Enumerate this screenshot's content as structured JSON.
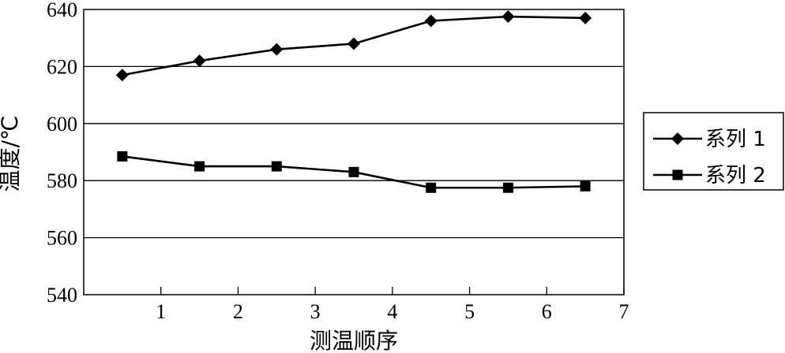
{
  "chart_data": {
    "type": "line",
    "xlabel": "测温顺序",
    "ylabel": "温度/℃",
    "xlim": [
      0,
      7
    ],
    "ylim": [
      540,
      640
    ],
    "xticks": [
      1,
      2,
      3,
      4,
      5,
      6,
      7
    ],
    "yticks": [
      540,
      560,
      580,
      600,
      620,
      640
    ],
    "grid": "horizontal",
    "legend_position": "right",
    "series": [
      {
        "name": "系列 1",
        "marker": "diamond",
        "color": "#000000",
        "x": [
          0.5,
          1.5,
          2.5,
          3.5,
          4.5,
          5.5,
          6.5
        ],
        "values": [
          617,
          622,
          626,
          628,
          636,
          637.5,
          637
        ]
      },
      {
        "name": "系列 2",
        "marker": "square",
        "color": "#000000",
        "x": [
          0.5,
          1.5,
          2.5,
          3.5,
          4.5,
          5.5,
          6.5
        ],
        "values": [
          588.5,
          585,
          585,
          583,
          577.5,
          577.5,
          578
        ]
      }
    ]
  }
}
